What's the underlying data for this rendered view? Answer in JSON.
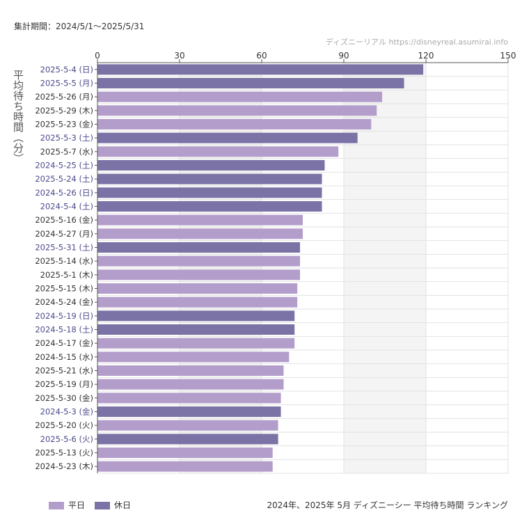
{
  "header": {
    "period": "集計期間：2024/5/1〜2025/5/31",
    "credit": "ディズニーリアル https://disneyreal.asumirai.info"
  },
  "chart_data": {
    "type": "bar",
    "orientation": "horizontal",
    "title": "2024年、2025年 5月 ディズニーシー 平均待ち時間 ランキング",
    "ylabel": "平均待ち時間（分）",
    "xlim": [
      0,
      150
    ],
    "xticks": [
      0,
      30,
      60,
      90,
      120,
      150
    ],
    "grid": true,
    "legend_position": "bottom-left",
    "colors": {
      "weekday": "#b39dcb",
      "holiday": "#7b72a5",
      "holiday_label": "#4b4a8c",
      "weekday_label": "#333333"
    },
    "legend": [
      {
        "key": "weekday",
        "label": "平日"
      },
      {
        "key": "holiday",
        "label": "休日"
      }
    ],
    "categories": [
      "2025-5-4 (日)",
      "2025-5-5 (月)",
      "2025-5-26 (月)",
      "2025-5-29 (木)",
      "2025-5-23 (金)",
      "2025-5-3 (土)",
      "2025-5-7 (水)",
      "2024-5-25 (土)",
      "2025-5-24 (土)",
      "2024-5-26 (日)",
      "2024-5-4 (土)",
      "2025-5-16 (金)",
      "2024-5-27 (月)",
      "2025-5-31 (土)",
      "2025-5-14 (水)",
      "2025-5-1 (木)",
      "2025-5-15 (木)",
      "2024-5-24 (金)",
      "2024-5-19 (日)",
      "2024-5-18 (土)",
      "2024-5-17 (金)",
      "2024-5-15 (水)",
      "2025-5-21 (水)",
      "2025-5-19 (月)",
      "2025-5-30 (金)",
      "2024-5-3 (金)",
      "2025-5-20 (火)",
      "2025-5-6 (火)",
      "2025-5-13 (火)",
      "2024-5-23 (木)"
    ],
    "values": [
      119,
      112,
      104,
      102,
      100,
      95,
      88,
      83,
      82,
      82,
      82,
      75,
      75,
      74,
      74,
      74,
      73,
      73,
      72,
      72,
      72,
      70,
      68,
      68,
      67,
      67,
      66,
      66,
      64,
      64
    ],
    "day_type": [
      "holiday",
      "holiday",
      "weekday",
      "weekday",
      "weekday",
      "holiday",
      "weekday",
      "holiday",
      "holiday",
      "holiday",
      "holiday",
      "weekday",
      "weekday",
      "holiday",
      "weekday",
      "weekday",
      "weekday",
      "weekday",
      "holiday",
      "holiday",
      "weekday",
      "weekday",
      "weekday",
      "weekday",
      "weekday",
      "holiday",
      "weekday",
      "holiday",
      "weekday",
      "weekday"
    ]
  }
}
